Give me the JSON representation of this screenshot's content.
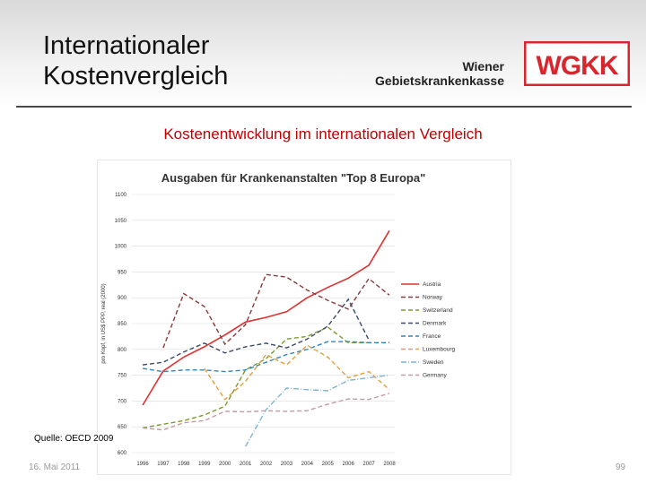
{
  "header": {
    "title_line1": "Internationaler",
    "title_line2": "Kostenvergleich",
    "org_line1": "Wiener",
    "org_line2": "Gebietskrankenkasse",
    "logo_text": "WGKK"
  },
  "subtitle": "Kostenentwicklung im internationalen Vergleich",
  "source": "Quelle: OECD 2009",
  "footer": {
    "date": "16. Mai 2011",
    "page": "99"
  },
  "colors": {
    "accent_red": "#c00000",
    "logo_red": "#d9262e"
  },
  "chart_data": {
    "type": "line",
    "title": "Ausgaben für Krankenanstalten \"Top 8 Europa\"",
    "ylabel": "pro Kopf, in US$ PPP, real (2000)",
    "xlabel": "",
    "x": [
      "1996",
      "1997",
      "1998",
      "1999",
      "2000",
      "2001",
      "2002",
      "2003",
      "2004",
      "2005",
      "2006",
      "2007",
      "2008"
    ],
    "ylim": [
      600,
      1100
    ],
    "yticks": [
      "600",
      "650",
      "700",
      "750",
      "800",
      "850",
      "900",
      "950",
      "1000",
      "1050",
      "1100"
    ],
    "legend_position": "right",
    "series": [
      {
        "name": "Austria",
        "color": "#e03030",
        "dash": "solid",
        "values": [
          692,
          758,
          785,
          805,
          828,
          853,
          862,
          873,
          900,
          920,
          938,
          963,
          1030
        ]
      },
      {
        "name": "Norway",
        "color": "#8b3a3a",
        "dash": "dashed",
        "values": [
          null,
          803,
          908,
          883,
          810,
          848,
          945,
          940,
          915,
          895,
          878,
          937,
          905
        ]
      },
      {
        "name": "Switzerland",
        "color": "#7a9a2e",
        "dash": "dashed",
        "values": [
          648,
          655,
          662,
          673,
          690,
          760,
          782,
          820,
          825,
          843,
          813,
          813,
          null
        ]
      },
      {
        "name": "Denmark",
        "color": "#3a4a6a",
        "dash": "dashed",
        "values": [
          770,
          775,
          795,
          812,
          793,
          805,
          812,
          803,
          820,
          845,
          897,
          818,
          null
        ]
      },
      {
        "name": "France",
        "color": "#2e86c1",
        "dash": "dashed",
        "values": [
          763,
          757,
          760,
          760,
          757,
          760,
          775,
          790,
          800,
          815,
          815,
          813,
          813
        ]
      },
      {
        "name": "Luxembourg",
        "color": "#e0a040",
        "dash": "dashed",
        "values": [
          null,
          null,
          null,
          763,
          703,
          738,
          790,
          770,
          808,
          785,
          745,
          757,
          722
        ]
      },
      {
        "name": "Sweden",
        "color": "#7fb3d5",
        "dash": "dashdot",
        "values": [
          null,
          null,
          null,
          null,
          null,
          612,
          683,
          725,
          722,
          720,
          740,
          745,
          750
        ]
      },
      {
        "name": "Germany",
        "color": "#c49aa2",
        "dash": "dashed",
        "values": [
          648,
          644,
          658,
          662,
          680,
          679,
          681,
          680,
          681,
          694,
          704,
          703,
          715
        ]
      }
    ]
  }
}
